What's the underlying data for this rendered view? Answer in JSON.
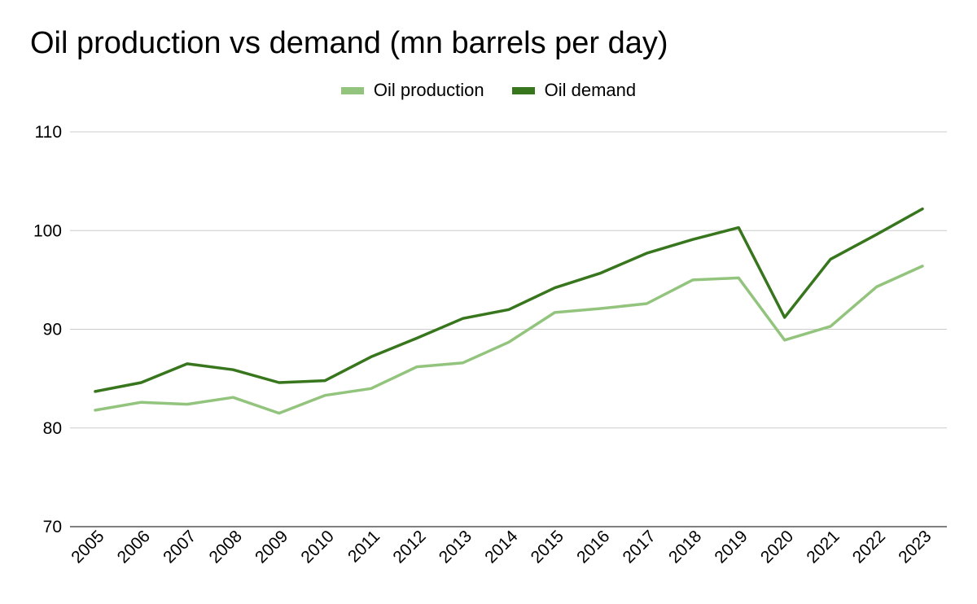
{
  "chart_data": {
    "type": "line",
    "title": "Oil production vs demand (mn barrels per day)",
    "xlabel": "",
    "ylabel": "",
    "categories": [
      "2005",
      "2006",
      "2007",
      "2008",
      "2009",
      "2010",
      "2011",
      "2012",
      "2013",
      "2014",
      "2015",
      "2016",
      "2017",
      "2018",
      "2019",
      "2020",
      "2021",
      "2022",
      "2023"
    ],
    "series": [
      {
        "name": "Oil production",
        "color": "#93c47d",
        "values": [
          81.8,
          82.6,
          82.4,
          83.1,
          81.5,
          83.3,
          84.0,
          86.2,
          86.6,
          88.7,
          91.7,
          92.1,
          92.6,
          95.0,
          95.2,
          88.9,
          90.3,
          94.3,
          96.4
        ]
      },
      {
        "name": "Oil demand",
        "color": "#38761d",
        "values": [
          83.7,
          84.6,
          86.5,
          85.9,
          84.6,
          84.8,
          87.2,
          89.1,
          91.1,
          92.0,
          94.2,
          95.7,
          97.7,
          99.1,
          100.3,
          91.2,
          97.1,
          99.6,
          102.2
        ]
      }
    ],
    "ylim": [
      70,
      110
    ],
    "yticks": [
      "70",
      "80",
      "90",
      "100",
      "110"
    ],
    "grid": true,
    "legend_position": "top-center"
  }
}
